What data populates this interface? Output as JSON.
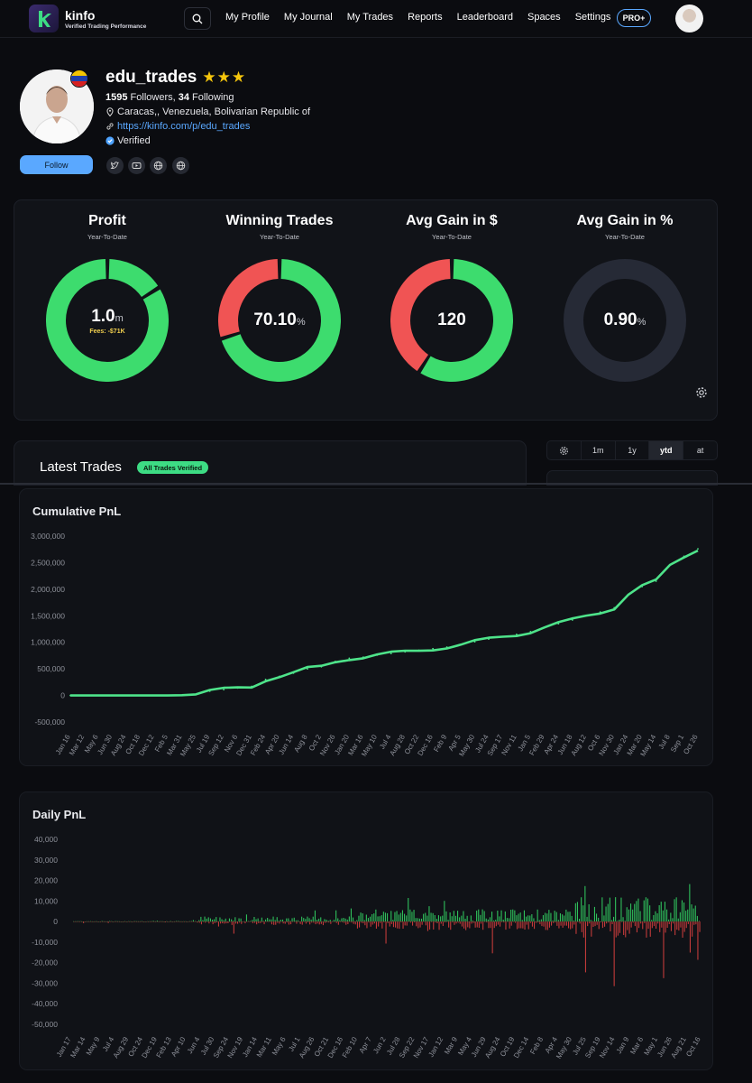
{
  "header": {
    "logo_name": "kinfo",
    "logo_tagline": "Verified Trading Performance",
    "nav": [
      "My Profile",
      "My Journal",
      "My Trades",
      "Reports",
      "Leaderboard",
      "Spaces",
      "Settings"
    ],
    "pro_label": "PRO+"
  },
  "profile": {
    "username": "edu_trades",
    "stars": "★★★",
    "followers_count": "1595",
    "followers_label": " Followers, ",
    "following_count": "34",
    "following_label": " Following",
    "location": "Caracas,, Venezuela, Bolivarian Republic of",
    "url": "https://kinfo.com/p/edu_trades",
    "verified_label": "Verified",
    "follow_label": "Follow",
    "socials": [
      "twitter-icon",
      "youtube-icon",
      "globe-icon",
      "globe-icon"
    ]
  },
  "stats": [
    {
      "title": "Profit",
      "subtitle": "Year-To-Date",
      "value": "1.0",
      "unit": "m",
      "extra": "Fees: -$71K",
      "segments": [
        {
          "fraction": 0.16,
          "color": "#3ddc6e"
        },
        {
          "fraction": 0.84,
          "color": "#3ddc6e"
        }
      ]
    },
    {
      "title": "Winning Trades",
      "subtitle": "Year-To-Date",
      "value": "70.10",
      "unit": "%",
      "extra": "",
      "segments": [
        {
          "fraction": 0.701,
          "color": "#3ddc6e"
        },
        {
          "fraction": 0.299,
          "color": "#f05454"
        }
      ]
    },
    {
      "title": "Avg Gain in $",
      "subtitle": "Year-To-Date",
      "value": "120",
      "unit": "",
      "extra": "",
      "segments": [
        {
          "fraction": 0.59,
          "color": "#3ddc6e"
        },
        {
          "fraction": 0.41,
          "color": "#f05454"
        }
      ]
    },
    {
      "title": "Avg Gain in %",
      "subtitle": "Year-To-Date",
      "value": "0.90",
      "unit": "%",
      "extra": "",
      "segments": [
        {
          "fraction": 1.0,
          "color": "#262a36"
        }
      ]
    }
  ],
  "latest_trades": {
    "title": "Latest Trades",
    "badge": "All Trades Verified"
  },
  "periods": [
    "1m",
    "1y",
    "ytd",
    "at"
  ],
  "active_period": "ytd",
  "chart_data": [
    {
      "type": "line",
      "title": "Cumulative PnL",
      "ylim": [
        -500000,
        3000000
      ],
      "yticks": [
        "3,000,000",
        "2,500,000",
        "2,000,000",
        "1,500,000",
        "1,000,000",
        "500,000",
        "0",
        "-500,000"
      ],
      "ytick_values": [
        3000000,
        2500000,
        2000000,
        1500000,
        1000000,
        500000,
        0,
        -500000
      ],
      "x": [
        "Jan 16",
        "Mar 12",
        "May 6",
        "Jun 30",
        "Aug 24",
        "Oct 18",
        "Dec 12",
        "Feb 5",
        "Mar 31",
        "May 25",
        "Jul 19",
        "Sep 12",
        "Nov 6",
        "Dec 31",
        "Feb 24",
        "Apr 20",
        "Jun 14",
        "Aug 8",
        "Oct 2",
        "Nov 26",
        "Jan 20",
        "Mar 16",
        "May 10",
        "Jul 4",
        "Aug 28",
        "Oct 22",
        "Dec 16",
        "Feb 9",
        "Apr 5",
        "May 30",
        "Jul 24",
        "Sep 17",
        "Nov 11",
        "Jan 5",
        "Feb 29",
        "Apr 24",
        "Jun 18",
        "Aug 12",
        "Oct 6",
        "Nov 30",
        "Jan 24",
        "Mar 20",
        "May 14",
        "Jul 8",
        "Sep 1",
        "Oct 26"
      ],
      "values": [
        0,
        0,
        0,
        0,
        0,
        0,
        0,
        0,
        5000,
        20000,
        80000,
        110000,
        140000,
        170000,
        300000,
        360000,
        420000,
        500000,
        540000,
        640000,
        700000,
        720000,
        760000,
        790000,
        820000,
        850000,
        880000,
        910000,
        950000,
        1010000,
        1060000,
        1110000,
        1150000,
        1200000,
        1280000,
        1350000,
        1420000,
        1500000,
        1570000,
        1650000,
        1900000,
        2050000,
        2150000,
        2450000,
        2620000,
        2760000
      ],
      "color": "#4ee38a"
    },
    {
      "type": "bar",
      "title": "Daily PnL",
      "ylim": [
        -50000,
        40000
      ],
      "yticks": [
        "40,000",
        "30,000",
        "20,000",
        "10,000",
        "0",
        "-10,000",
        "-20,000",
        "-30,000",
        "-40,000",
        "-50,000"
      ],
      "ytick_values": [
        40000,
        30000,
        20000,
        10000,
        0,
        -10000,
        -20000,
        -30000,
        -40000,
        -50000
      ],
      "x": [
        "Jan 17",
        "Mar 14",
        "May 9",
        "Jul 4",
        "Aug 29",
        "Oct 24",
        "Dec 19",
        "Feb 13",
        "Apr 10",
        "Jun 4",
        "Jul 30",
        "Sep 24",
        "Nov 19",
        "Jan 14",
        "Mar 11",
        "May 6",
        "Jul 1",
        "Aug 26",
        "Oct 21",
        "Dec 16",
        "Feb 10",
        "Apr 7",
        "Jun 2",
        "Jul 28",
        "Sep 22",
        "Nov 17",
        "Jan 12",
        "Mar 9",
        "May 4",
        "Jun 29",
        "Aug 24",
        "Oct 19",
        "Dec 14",
        "Feb 8",
        "Apr 4",
        "May 30",
        "Jul 25",
        "Sep 19",
        "Nov 14",
        "Jan 9",
        "Mar 6",
        "May 1",
        "Jun 26",
        "Aug 21",
        "Oct 16"
      ],
      "positive_color": "#2fbf5b",
      "negative_color": "#c23a3a"
    }
  ]
}
